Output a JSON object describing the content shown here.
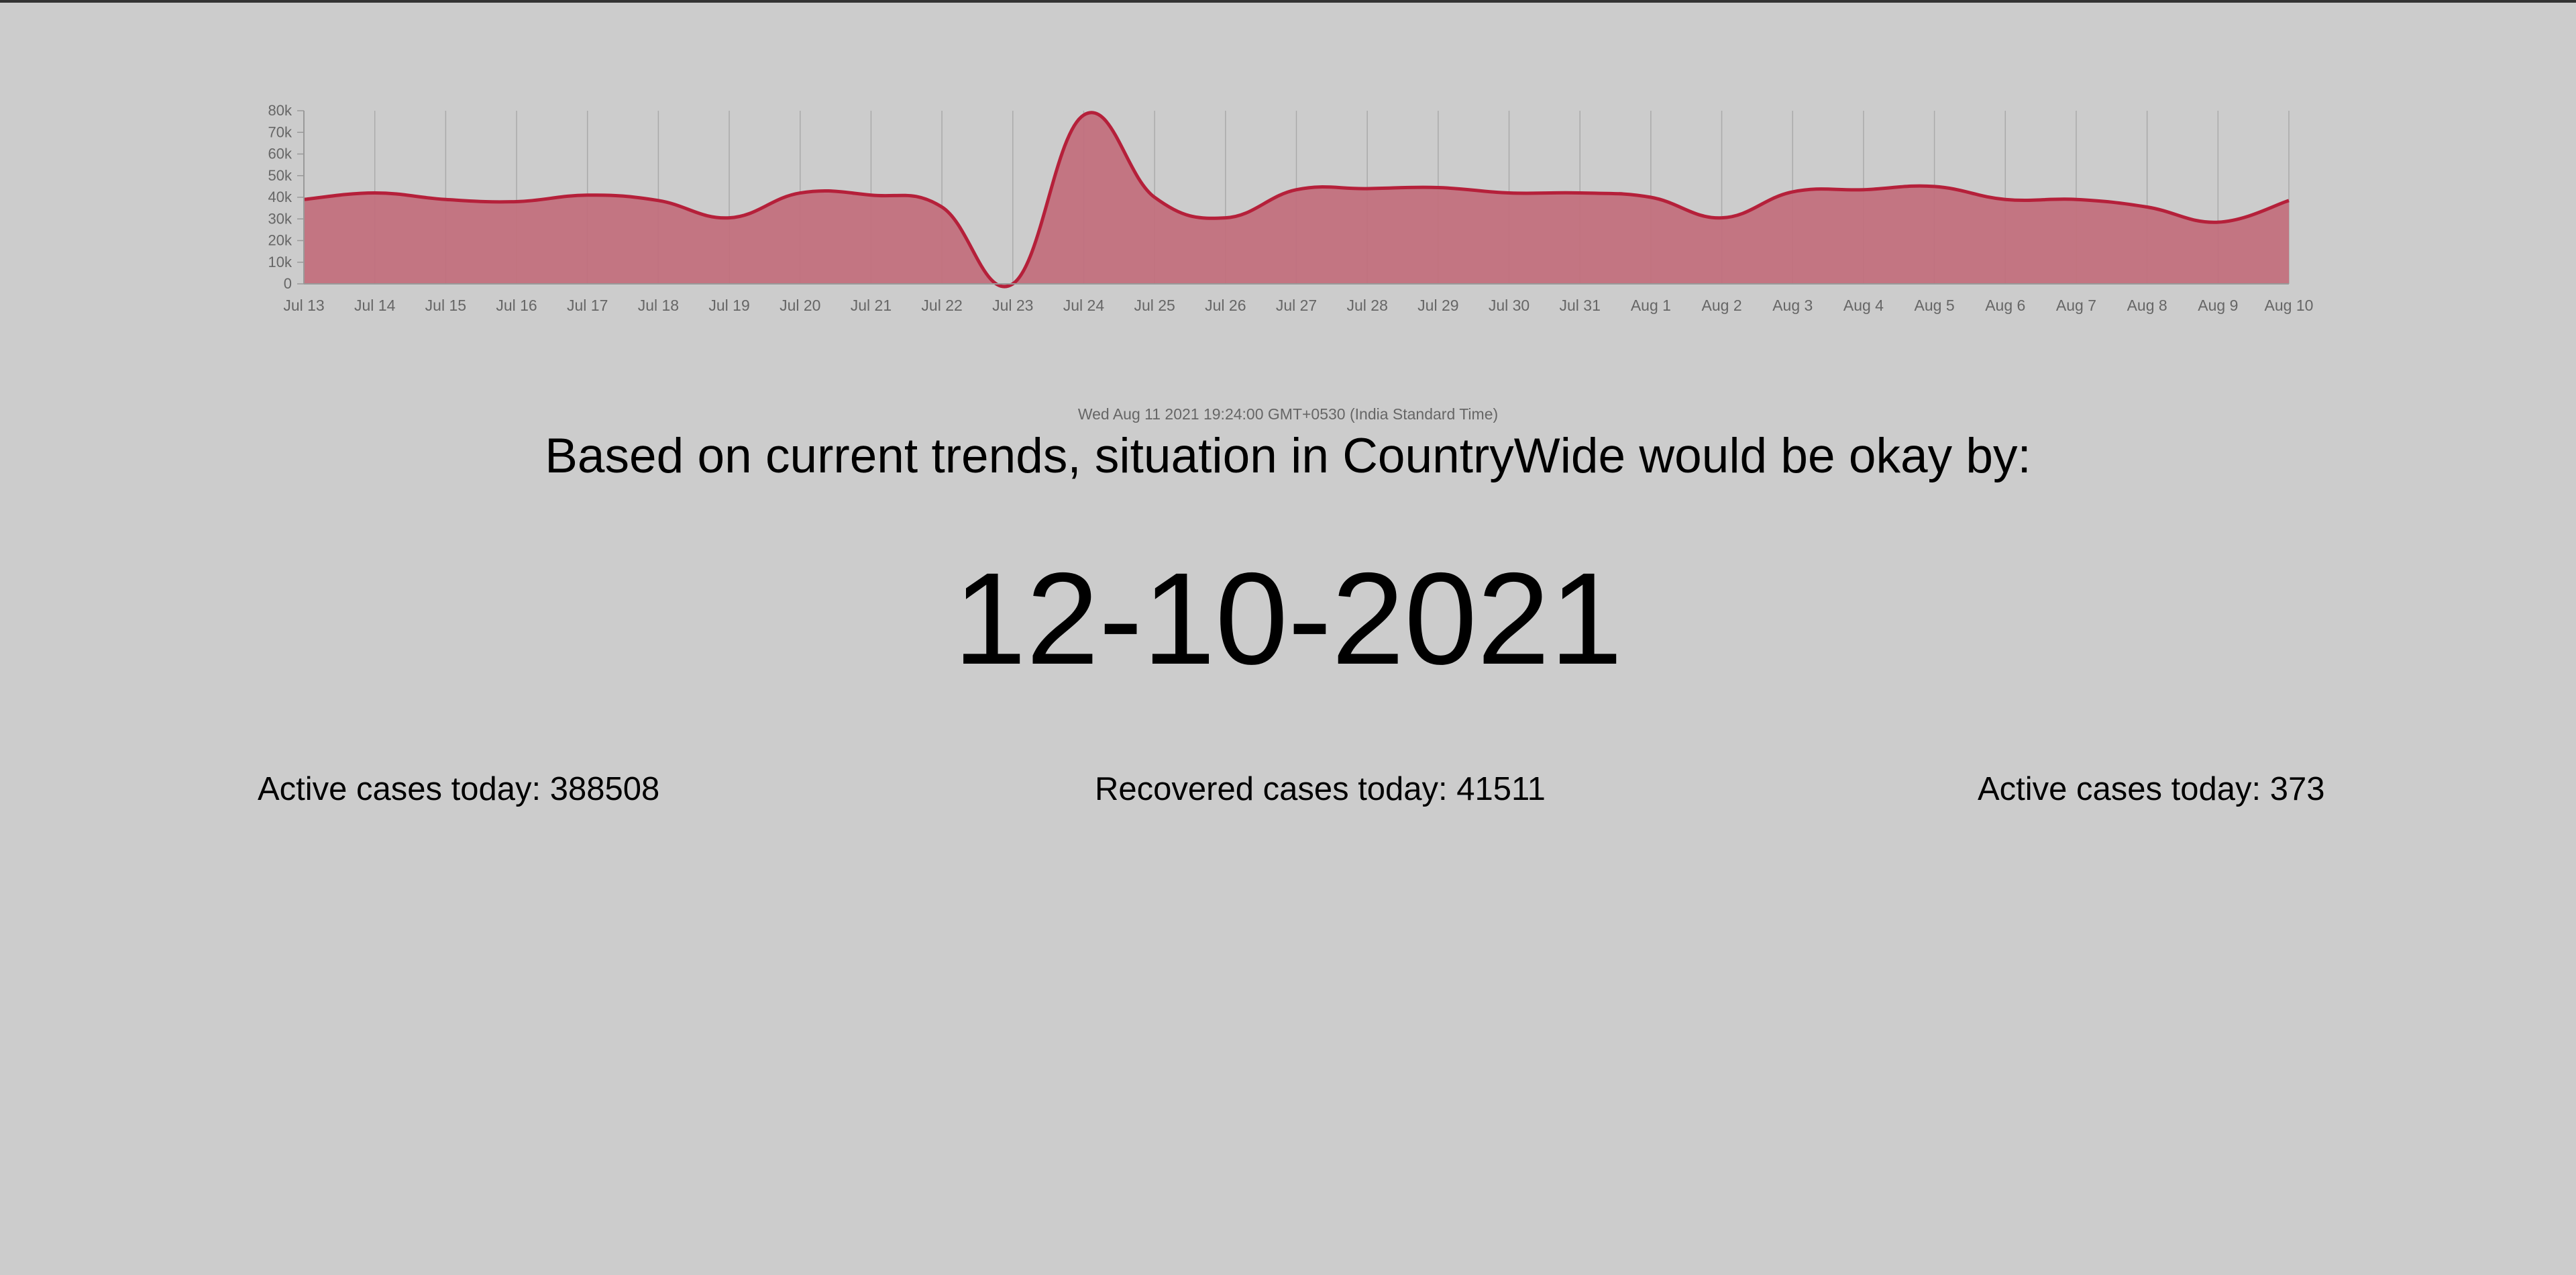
{
  "page": {
    "timestamp": "Wed Aug 11 2021 19:24:00 GMT+0530 (India Standard Time)",
    "headline": "Based on current trends, situation in CountryWide would be okay by:",
    "predicted_date": "12-10-2021"
  },
  "stats": {
    "active_label": "Active cases today: 388508",
    "recovered_label": "Recovered cases today: 41511",
    "active_label_2": "Active cases today: 373"
  },
  "colors": {
    "background": "#cccccc",
    "line": "#b5203a",
    "fill": "#c2707d",
    "grid": "#aaaaaa",
    "tick_text": "#666666"
  },
  "chart_data": {
    "type": "area",
    "title": "",
    "xlabel": "",
    "ylabel": "",
    "grid": "vertical",
    "ylim": [
      0,
      80000
    ],
    "yticks": [
      {
        "value": 0,
        "label": "0"
      },
      {
        "value": 10000,
        "label": "10k"
      },
      {
        "value": 20000,
        "label": "20k"
      },
      {
        "value": 30000,
        "label": "30k"
      },
      {
        "value": 40000,
        "label": "40k"
      },
      {
        "value": 50000,
        "label": "50k"
      },
      {
        "value": 60000,
        "label": "60k"
      },
      {
        "value": 70000,
        "label": "70k"
      },
      {
        "value": 80000,
        "label": "80k"
      }
    ],
    "categories": [
      "Jul 13",
      "Jul 14",
      "Jul 15",
      "Jul 16",
      "Jul 17",
      "Jul 18",
      "Jul 19",
      "Jul 20",
      "Jul 21",
      "Jul 22",
      "Jul 23",
      "Jul 24",
      "Jul 25",
      "Jul 26",
      "Jul 27",
      "Jul 28",
      "Jul 29",
      "Jul 30",
      "Jul 31",
      "Aug 1",
      "Aug 2",
      "Aug 3",
      "Aug 4",
      "Aug 5",
      "Aug 6",
      "Aug 7",
      "Aug 8",
      "Aug 9",
      "Aug 10"
    ],
    "series": [
      {
        "values": [
          39000,
          42000,
          39000,
          38000,
          41000,
          38500,
          30500,
          42000,
          41000,
          35500,
          0,
          78000,
          40000,
          30500,
          43500,
          44000,
          44500,
          42000,
          42000,
          40000,
          30500,
          42500,
          43500,
          45000,
          39000,
          39000,
          35500,
          28500,
          38500
        ]
      }
    ]
  }
}
